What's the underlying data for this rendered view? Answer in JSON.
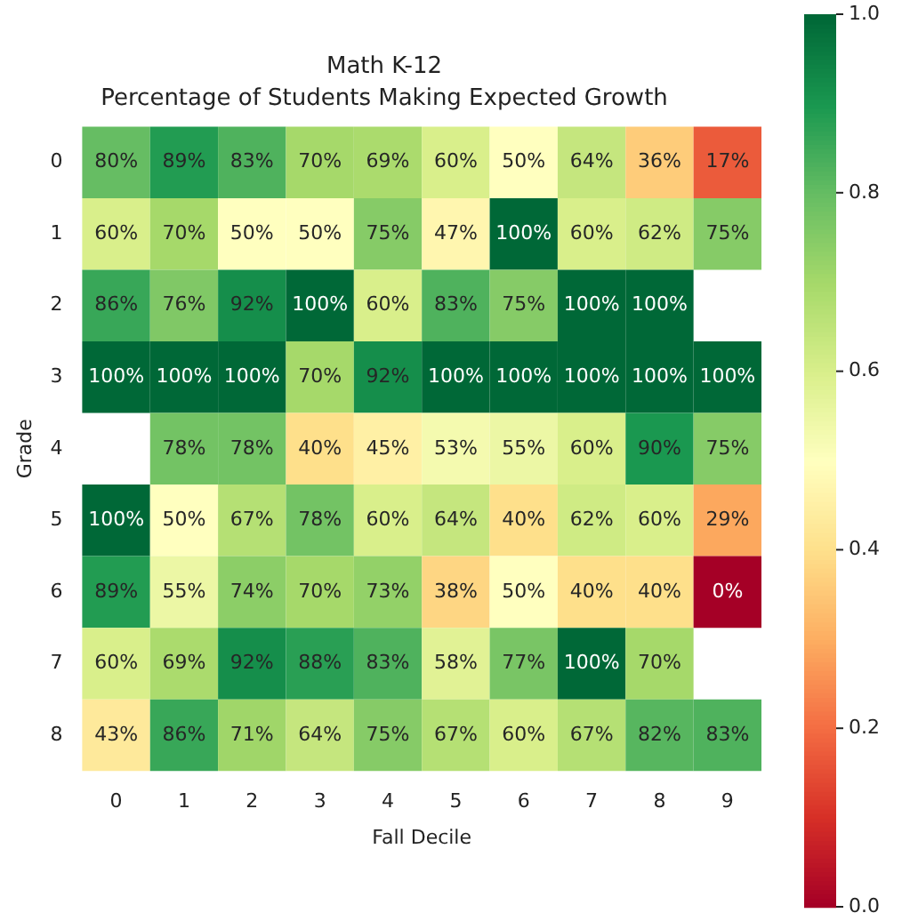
{
  "chart_data": {
    "type": "heatmap",
    "title": "Math K-12",
    "subtitle": "Percentage of Students Making Expected Growth",
    "xlabel": "Fall Decile",
    "ylabel": "Grade",
    "categories": [
      "0",
      "1",
      "2",
      "3",
      "4",
      "5",
      "6",
      "7",
      "8",
      "9"
    ],
    "y_categories": [
      "0",
      "1",
      "2",
      "3",
      "4",
      "5",
      "6",
      "7",
      "8"
    ],
    "cells": [
      [
        0.8,
        0.89,
        0.83,
        0.7,
        0.69,
        0.6,
        0.5,
        0.64,
        0.36,
        0.17
      ],
      [
        0.6,
        0.7,
        0.5,
        0.5,
        0.75,
        0.47,
        1,
        0.6,
        0.62,
        0.75
      ],
      [
        0.86,
        0.76,
        0.92,
        1,
        0.6,
        0.83,
        0.75,
        1,
        1,
        null
      ],
      [
        1,
        1,
        1,
        0.7,
        0.92,
        1,
        1,
        1,
        1,
        1
      ],
      [
        null,
        0.78,
        0.78,
        0.4,
        0.45,
        0.53,
        0.55,
        0.6,
        0.9,
        0.75
      ],
      [
        1,
        0.5,
        0.67,
        0.78,
        0.6,
        0.64,
        0.4,
        0.62,
        0.6,
        0.29
      ],
      [
        0.89,
        0.55,
        0.74,
        0.7,
        0.73,
        0.38,
        0.5,
        0.4,
        0.4,
        0
      ],
      [
        0.6,
        0.69,
        0.92,
        0.88,
        0.83,
        0.58,
        0.77,
        1,
        0.7,
        null
      ],
      [
        0.43,
        0.86,
        0.71,
        0.64,
        0.75,
        0.67,
        0.6,
        0.67,
        0.82,
        0.83
      ]
    ],
    "cell_labels": [
      [
        "80%",
        "89%",
        "83%",
        "70%",
        "69%",
        "60%",
        "50%",
        "64%",
        "36%",
        "17%"
      ],
      [
        "60%",
        "70%",
        "50%",
        "50%",
        "75%",
        "47%",
        "100%",
        "60%",
        "62%",
        "75%"
      ],
      [
        "86%",
        "76%",
        "92%",
        "100%",
        "60%",
        "83%",
        "75%",
        "100%",
        "100%",
        null
      ],
      [
        "100%",
        "100%",
        "100%",
        "70%",
        "92%",
        "100%",
        "100%",
        "100%",
        "100%",
        "100%"
      ],
      [
        null,
        "78%",
        "78%",
        "40%",
        "45%",
        "53%",
        "55%",
        "60%",
        "90%",
        "75%"
      ],
      [
        "100%",
        "50%",
        "67%",
        "78%",
        "60%",
        "64%",
        "40%",
        "62%",
        "60%",
        "29%"
      ],
      [
        "89%",
        "55%",
        "74%",
        "70%",
        "73%",
        "38%",
        "50%",
        "40%",
        "40%",
        "0%"
      ],
      [
        "60%",
        "69%",
        "92%",
        "88%",
        "83%",
        "58%",
        "77%",
        "100%",
        "70%",
        null
      ],
      [
        "43%",
        "86%",
        "71%",
        "64%",
        "75%",
        "67%",
        "60%",
        "67%",
        "82%",
        "83%"
      ]
    ],
    "clim": [
      0,
      1
    ],
    "cticks": [
      {
        "value": 0,
        "label": "0.0"
      },
      0.2,
      0.4,
      0.6,
      0.8,
      {
        "value": 1,
        "label": "1.0"
      }
    ]
  }
}
